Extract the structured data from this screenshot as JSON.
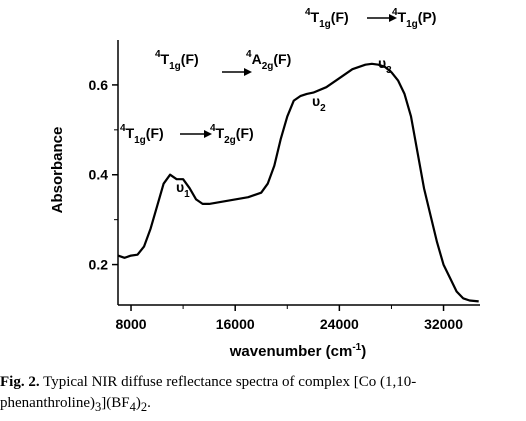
{
  "chart_data": {
    "type": "line",
    "title": "",
    "xlabel_main": "wavenumber (cm",
    "xlabel_sup": "-1",
    "xlabel_close": ")",
    "ylabel": "Absorbance",
    "xlim": [
      7000,
      34800
    ],
    "ylim": [
      0.11,
      0.7
    ],
    "xticks": [
      8000,
      16000,
      24000,
      32000
    ],
    "xtick_labels": [
      "8000",
      "16000",
      "24000",
      "32000"
    ],
    "yticks": [
      0.2,
      0.4,
      0.6
    ],
    "ytick_labels": [
      "0.2",
      "0.4",
      "0.6"
    ],
    "grid": false,
    "legend": "none",
    "line_color": "#000000",
    "series": [
      {
        "x": [
          7000,
          7500,
          8000,
          8500,
          9000,
          9500,
          10000,
          10500,
          11000,
          11500,
          12000,
          12500,
          13000,
          13500,
          14000,
          15000,
          16000,
          17000,
          18000,
          18500,
          19000,
          19500,
          20000,
          20500,
          21000,
          21500,
          22000,
          23000,
          24000,
          25000,
          26000,
          26500,
          27000,
          27500,
          28000,
          28500,
          29000,
          29500,
          30000,
          30500,
          31000,
          31500,
          32000,
          32500,
          33000,
          33500,
          34000,
          34700
        ],
        "y": [
          0.22,
          0.215,
          0.22,
          0.222,
          0.24,
          0.28,
          0.33,
          0.38,
          0.4,
          0.39,
          0.39,
          0.37,
          0.345,
          0.335,
          0.335,
          0.34,
          0.345,
          0.35,
          0.36,
          0.38,
          0.42,
          0.48,
          0.53,
          0.565,
          0.575,
          0.58,
          0.583,
          0.595,
          0.615,
          0.635,
          0.645,
          0.647,
          0.645,
          0.64,
          0.628,
          0.61,
          0.58,
          0.53,
          0.45,
          0.37,
          0.31,
          0.25,
          0.2,
          0.17,
          0.14,
          0.125,
          0.12,
          0.118
        ]
      }
    ],
    "annotations": [
      {
        "text": "T",
        "pre_sup": "4",
        "sub": "1g",
        "state": "(F)",
        "arrow": true,
        "target": "T",
        "target_sup": "4",
        "target_sub": "2g",
        "target_state": "(F)"
      },
      {
        "text": "T",
        "pre_sup": "4",
        "sub": "1g",
        "state": "(F)",
        "arrow": true,
        "target": "A",
        "target_sup": "4",
        "target_sub": "2g",
        "target_state": "(F)"
      },
      {
        "text": "T",
        "pre_sup": "4",
        "sub": "1g",
        "state": "(F)",
        "arrow": true,
        "target": "T",
        "target_sup": "4",
        "target_sub": "1g",
        "target_state": "(P)"
      }
    ],
    "band_labels": [
      {
        "symbol": "υ",
        "sub": "1"
      },
      {
        "symbol": "υ",
        "sub": "2"
      },
      {
        "symbol": "υ",
        "sub": "3"
      }
    ]
  },
  "caption": {
    "lead": "Fig. 2.",
    "text_part1": " Typical NIR diffuse reflectance spectra of complex [Co (1,10-phenanthroline)",
    "sub1": "3",
    "text_part2": "](BF",
    "sub2": "4",
    "text_part3": ")",
    "sub3": "2",
    "text_part4": "."
  }
}
